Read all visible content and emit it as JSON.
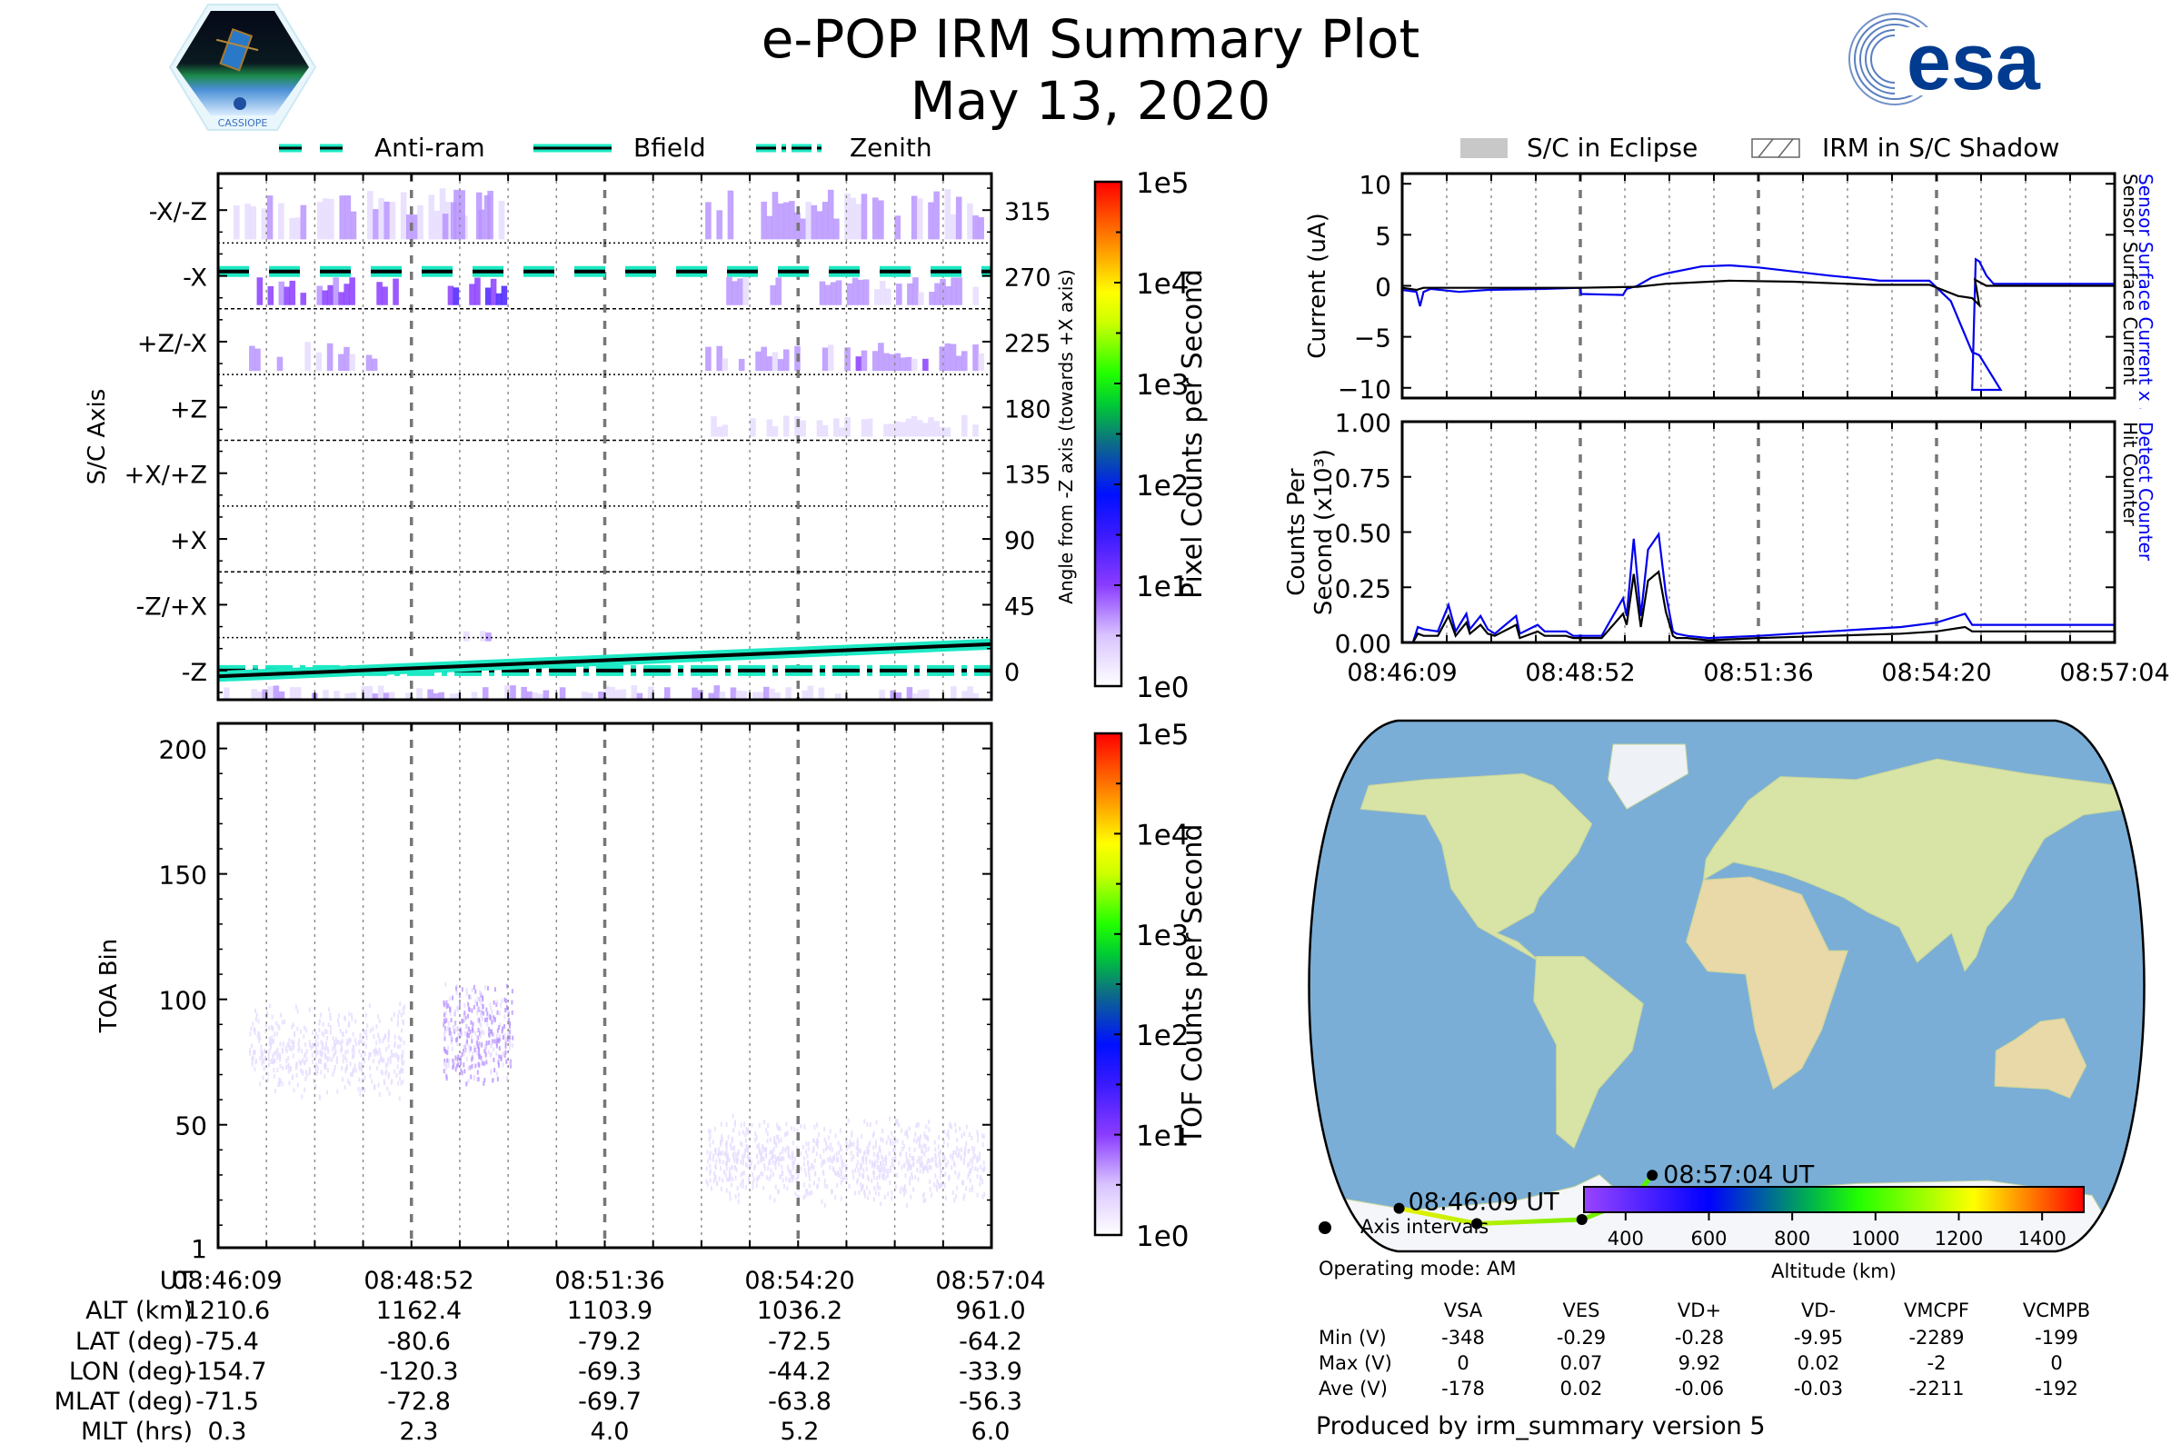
{
  "header": {
    "title": "e-POP IRM Summary Plot",
    "date": "May 13, 2020",
    "left_logo": "cassiope-mission-logo",
    "left_logo_caption": "CASSIOPE",
    "right_logo": "esa"
  },
  "legend_left": [
    {
      "label": "Anti-ram",
      "style": "dashed",
      "color": "#1de9c4"
    },
    {
      "label": "Bfield",
      "style": "solid",
      "color": "#1de9c4"
    },
    {
      "label": "Zenith",
      "style": "dashdot",
      "color": "#1de9c4"
    }
  ],
  "legend_right": [
    {
      "label": "S/C in Eclipse",
      "style": "filled-gray"
    },
    {
      "label": "IRM in S/C Shadow",
      "style": "hatched"
    }
  ],
  "colors": {
    "blue_series": "#0000ee",
    "black_series": "#000000",
    "track_start": "#e8f000",
    "track_end": "#55ee00",
    "guide_cyan": "#1de9c4",
    "heat_purple": "#8a3cff"
  },
  "chart_data": [
    {
      "id": "pixel-counts",
      "type": "heatmap",
      "ylabel_left": "S/C Axis",
      "ylabel_right": "Angle from -Z axis (towards +X axis)",
      "y_categories": [
        "-X/-Z",
        "-X",
        "+Z/-X",
        "+Z",
        "+X/+Z",
        "+X",
        "-Z/+X",
        "-Z"
      ],
      "y_right_ticks": [
        315,
        270,
        225,
        180,
        135,
        90,
        45,
        0
      ],
      "ylim": [
        -20,
        340
      ],
      "colorbar": {
        "label": "Pixel Counts per Second",
        "scale": "log",
        "ticks": [
          "1e5",
          "1e4",
          "1e3",
          "1e2",
          "1e1",
          "1e0"
        ],
        "range": [
          1,
          100000
        ]
      },
      "guides": {
        "anti_ram_angle_deg": 273,
        "zenith_angle_deg": 0,
        "bfield_angle_deg_start": -4,
        "bfield_angle_deg_end": 18
      },
      "activity_regions": [
        {
          "angle_band": [
            295,
            330
          ],
          "time_frac": [
            0.02,
            0.38
          ],
          "level": 4
        },
        {
          "angle_band": [
            295,
            330
          ],
          "time_frac": [
            0.29,
            0.37
          ],
          "level": 8
        },
        {
          "angle_band": [
            295,
            330
          ],
          "time_frac": [
            0.63,
            0.99
          ],
          "level": 5
        },
        {
          "angle_band": [
            250,
            270
          ],
          "time_frac": [
            0.05,
            0.24
          ],
          "level": 20
        },
        {
          "angle_band": [
            250,
            270
          ],
          "time_frac": [
            0.29,
            0.38
          ],
          "level": 40
        },
        {
          "angle_band": [
            250,
            270
          ],
          "time_frac": [
            0.65,
            0.99
          ],
          "level": 5
        },
        {
          "angle_band": [
            205,
            225
          ],
          "time_frac": [
            0.04,
            0.22
          ],
          "level": 4
        },
        {
          "angle_band": [
            205,
            225
          ],
          "time_frac": [
            0.63,
            0.99
          ],
          "level": 8
        },
        {
          "angle_band": [
            160,
            175
          ],
          "time_frac": [
            0.63,
            0.99
          ],
          "level": 2
        },
        {
          "angle_band": [
            20,
            30
          ],
          "time_frac": [
            0.31,
            0.36
          ],
          "level": 4
        },
        {
          "angle_band": [
            -20,
            -10
          ],
          "time_frac": [
            0.0,
            0.99
          ],
          "level": 3
        }
      ]
    },
    {
      "id": "toa-counts",
      "type": "heatmap",
      "ylabel": "TOA Bin",
      "y_ticks": [
        1,
        50,
        100,
        150,
        200
      ],
      "ylim": [
        1,
        210
      ],
      "colorbar": {
        "label": "TOF Counts per Second",
        "scale": "log",
        "ticks": [
          "1e5",
          "1e4",
          "1e3",
          "1e2",
          "1e1",
          "1e0"
        ],
        "range": [
          1,
          100000
        ]
      },
      "activity_regions": [
        {
          "toa_band": [
            60,
            100
          ],
          "time_frac": [
            0.04,
            0.24
          ],
          "level": 3
        },
        {
          "toa_band": [
            65,
            110
          ],
          "time_frac": [
            0.29,
            0.38
          ],
          "level": 8
        },
        {
          "toa_band": [
            18,
            55
          ],
          "time_frac": [
            0.63,
            0.99
          ],
          "level": 2
        }
      ]
    },
    {
      "id": "surface-current",
      "type": "line",
      "ylabel": "Current (uA)",
      "right_labels": [
        "Sensor Surface Current x 5",
        "Sensor Surface Current"
      ],
      "ylim": [
        -11,
        11
      ],
      "y_ticks": [
        10,
        5,
        0,
        -5,
        -10
      ],
      "x_range_frac": [
        0,
        1
      ],
      "series": [
        {
          "name": "Sensor Surface Current x 5",
          "color": "#0000ee",
          "x": [
            0,
            0.02,
            0.025,
            0.03,
            0.04,
            0.08,
            0.12,
            0.2,
            0.25,
            0.251,
            0.31,
            0.315,
            0.33,
            0.35,
            0.37,
            0.42,
            0.46,
            0.5,
            0.55,
            0.6,
            0.66,
            0.67,
            0.74,
            0.77,
            0.8,
            0.81,
            0.84,
            0.8,
            0.805,
            0.81,
            0.82,
            0.83,
            0.84,
            0.9,
            1.0
          ],
          "y": [
            -0.4,
            -0.6,
            -2.0,
            -0.6,
            -0.3,
            -0.6,
            -0.4,
            -0.3,
            -0.2,
            -0.8,
            -0.9,
            -0.3,
            0.0,
            0.8,
            1.2,
            1.9,
            2.0,
            1.8,
            1.4,
            1.0,
            0.6,
            0.5,
            0.5,
            -1.5,
            -6.5,
            -6.8,
            -10.2,
            -10.2,
            2.6,
            2.4,
            1.0,
            0.2,
            0.2,
            0.2,
            0.2
          ]
        },
        {
          "name": "Sensor Surface Current",
          "color": "#000000",
          "x": [
            0,
            0.02,
            0.03,
            0.25,
            0.33,
            0.37,
            0.46,
            0.55,
            0.66,
            0.74,
            0.78,
            0.8,
            0.81,
            0.804,
            0.82,
            1.0
          ],
          "y": [
            -0.2,
            -0.4,
            -0.2,
            -0.2,
            -0.1,
            0.2,
            0.5,
            0.4,
            0.1,
            0.1,
            -1.0,
            -1.2,
            -1.9,
            0.6,
            0.0,
            0.0
          ]
        }
      ]
    },
    {
      "id": "counts-per-second",
      "type": "line",
      "ylabel": "Counts Per Second (x10^3)",
      "right_labels": [
        "Detect Counter",
        "Hit Counter"
      ],
      "ylim": [
        0,
        1.0
      ],
      "y_ticks": [
        "1.00",
        "0.75",
        "0.50",
        "0.25",
        "0.00"
      ],
      "x_tick_labels": [
        "08:46:09",
        "08:48:52",
        "08:51:36",
        "08:54:20",
        "08:57:04"
      ],
      "series": [
        {
          "name": "Detect Counter",
          "color": "#0000ee",
          "x": [
            0,
            0.015,
            0.022,
            0.03,
            0.05,
            0.065,
            0.075,
            0.09,
            0.095,
            0.11,
            0.12,
            0.13,
            0.16,
            0.165,
            0.19,
            0.2,
            0.23,
            0.24,
            0.28,
            0.31,
            0.315,
            0.325,
            0.335,
            0.345,
            0.36,
            0.37,
            0.38,
            0.385,
            0.4,
            0.43,
            0.5,
            0.6,
            0.7,
            0.75,
            0.79,
            0.8,
            0.82,
            0.9,
            1.0
          ],
          "y": [
            0.0,
            0.0,
            0.07,
            0.06,
            0.05,
            0.17,
            0.05,
            0.13,
            0.06,
            0.12,
            0.06,
            0.04,
            0.12,
            0.04,
            0.08,
            0.05,
            0.05,
            0.03,
            0.03,
            0.2,
            0.12,
            0.47,
            0.12,
            0.42,
            0.49,
            0.22,
            0.05,
            0.04,
            0.03,
            0.02,
            0.03,
            0.05,
            0.07,
            0.09,
            0.13,
            0.08,
            0.08,
            0.08,
            0.08
          ]
        },
        {
          "name": "Hit Counter",
          "color": "#000000",
          "x": [
            0,
            0.015,
            0.022,
            0.03,
            0.05,
            0.065,
            0.075,
            0.09,
            0.095,
            0.11,
            0.12,
            0.13,
            0.16,
            0.165,
            0.19,
            0.2,
            0.23,
            0.24,
            0.28,
            0.31,
            0.315,
            0.325,
            0.335,
            0.345,
            0.36,
            0.37,
            0.38,
            0.385,
            0.4,
            0.43,
            0.5,
            0.6,
            0.7,
            0.75,
            0.79,
            0.8,
            0.82,
            0.9,
            1.0
          ],
          "y": [
            0.0,
            0.0,
            0.04,
            0.03,
            0.03,
            0.12,
            0.03,
            0.09,
            0.04,
            0.08,
            0.04,
            0.03,
            0.08,
            0.02,
            0.05,
            0.03,
            0.03,
            0.02,
            0.02,
            0.13,
            0.08,
            0.31,
            0.07,
            0.28,
            0.32,
            0.14,
            0.03,
            0.02,
            0.02,
            0.01,
            0.02,
            0.03,
            0.04,
            0.05,
            0.07,
            0.05,
            0.05,
            0.05,
            0.05
          ]
        }
      ]
    },
    {
      "id": "altitude-colorbar",
      "type": "colorbar",
      "label": "Altitude (km)",
      "ticks": [
        400,
        600,
        800,
        1000,
        1200,
        1400
      ],
      "range": [
        300,
        1500
      ]
    }
  ],
  "time_axis": {
    "row_labels": [
      "UT",
      "ALT (km)",
      "LAT (deg)",
      "LON (deg)",
      "MLAT (deg)",
      "MLT (hrs)"
    ],
    "columns": [
      [
        "08:46:09",
        "1210.6",
        "-75.4",
        "-154.7",
        "-71.5",
        "0.3"
      ],
      [
        "08:48:52",
        "1162.4",
        "-80.6",
        "-120.3",
        "-72.8",
        "2.3"
      ],
      [
        "08:51:36",
        "1103.9",
        "-79.2",
        "-69.3",
        "-69.7",
        "4.0"
      ],
      [
        "08:54:20",
        "1036.2",
        "-72.5",
        "-44.2",
        "-63.8",
        "5.2"
      ],
      [
        "08:57:04",
        "961.0",
        "-64.2",
        "-33.9",
        "-56.3",
        "6.0"
      ]
    ]
  },
  "map": {
    "start_label": "08:46:09 UT",
    "end_label": "08:57:04 UT",
    "track_lon": [
      -154.7,
      -120.3,
      -69.3,
      -44.2,
      -33.9
    ],
    "track_lat": [
      -75.4,
      -80.6,
      -79.2,
      -72.5,
      -64.2
    ]
  },
  "footer": {
    "axis_intervals_label": "Axis intervals",
    "operating_mode": "Operating mode: AM",
    "voltage_table": {
      "headers": [
        "",
        "VSA",
        "VES",
        "VD+",
        "VD-",
        "VMCPF",
        "VCMPB"
      ],
      "rows": [
        [
          "Min (V)",
          "-348",
          "-0.29",
          "-0.28",
          "-9.95",
          "-2289",
          "-199"
        ],
        [
          "Max (V)",
          "0",
          "0.07",
          "9.92",
          "0.02",
          "-2",
          "0"
        ],
        [
          "Ave (V)",
          "-178",
          "0.02",
          "-0.06",
          "-0.03",
          "-2211",
          "-192"
        ]
      ]
    },
    "produced_by": "Produced by irm_summary version 5"
  }
}
